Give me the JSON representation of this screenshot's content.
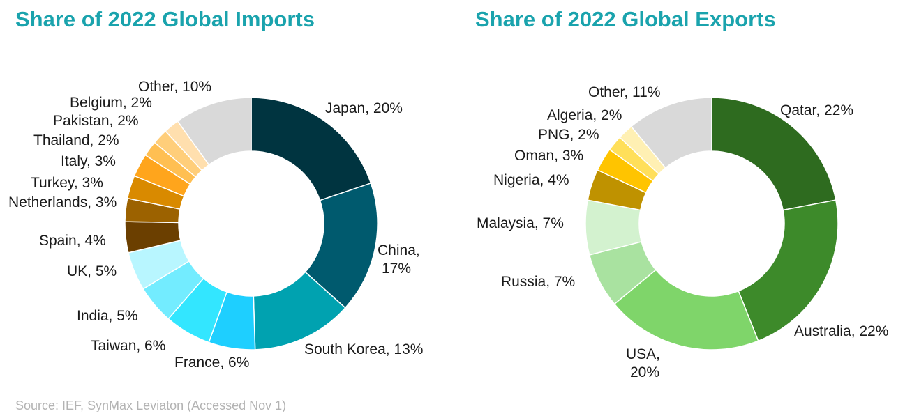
{
  "chart_data": [
    {
      "type": "pie",
      "variant": "donut",
      "title": "Share of 2022 Global Imports",
      "categories": [
        "Japan",
        "China",
        "South Korea",
        "France",
        "Taiwan",
        "India",
        "UK",
        "Spain",
        "Netherlands",
        "Turkey",
        "Italy",
        "Thailand",
        "Pakistan",
        "Belgium",
        "Other"
      ],
      "values": [
        20,
        17,
        13,
        6,
        6,
        5,
        5,
        4,
        3,
        3,
        3,
        2,
        2,
        2,
        10
      ],
      "labels": [
        "Japan, 20%",
        "China,|17%",
        "South Korea, 13%",
        "France, 6%",
        "Taiwan, 6%",
        "India, 5%",
        "UK, 5%",
        "Spain, 4%",
        "Netherlands, 3%",
        "Turkey, 3%",
        "Italy, 3%",
        "Thailand, 2%",
        "Pakistan, 2%",
        "Belgium, 2%",
        "Other, 10%"
      ],
      "colors": [
        "#003440",
        "#005a6e",
        "#00a2b0",
        "#1ecfff",
        "#33e6ff",
        "#73ecff",
        "#b8f6ff",
        "#6b3f00",
        "#9c6200",
        "#d98a00",
        "#ffa51c",
        "#ffbf52",
        "#ffce7a",
        "#ffdfae",
        "#d9d9d9"
      ]
    },
    {
      "type": "pie",
      "variant": "donut",
      "title": "Share of 2022 Global Exports",
      "categories": [
        "Qatar",
        "Australia",
        "USA",
        "Russia",
        "Malaysia",
        "Nigeria",
        "Oman",
        "PNG",
        "Algeria",
        "Other"
      ],
      "values": [
        22,
        22,
        20,
        7,
        7,
        4,
        3,
        2,
        2,
        11
      ],
      "labels": [
        "Qatar, 22%",
        "Australia, 22%",
        "USA,|20%",
        "Russia, 7%",
        "Malaysia, 7%",
        "Nigeria, 4%",
        "Oman, 3%",
        "PNG, 2%",
        "Algeria, 2%",
        "Other, 11%"
      ],
      "colors": [
        "#2e6b1f",
        "#3d8a2a",
        "#7fd56a",
        "#a9e2a0",
        "#d3f2cf",
        "#bf9200",
        "#ffc400",
        "#ffdf5a",
        "#fff0b3",
        "#d9d9d9"
      ]
    }
  ],
  "source": "Source: IEF, SynMax Leviaton  (Accessed Nov 1)"
}
